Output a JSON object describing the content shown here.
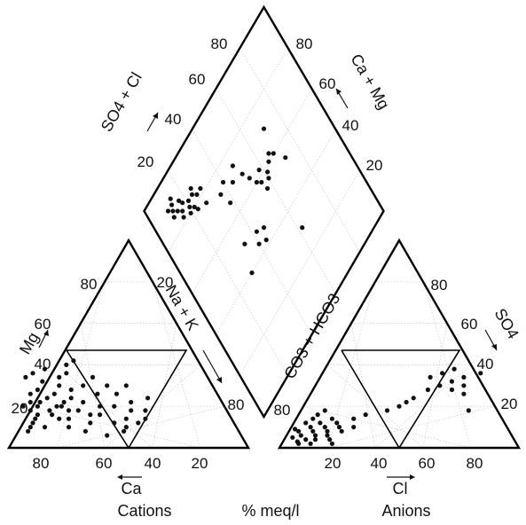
{
  "chart_data": {
    "type": "scatter",
    "subtype": "piper-trilinear",
    "grid": true,
    "cation_triangle": {
      "bottom_ticks": [
        "80",
        "60",
        "40",
        "20"
      ],
      "left_ticks": [
        "20",
        "40",
        "60",
        "80"
      ],
      "right_ticks": [
        "20",
        "40",
        "60",
        "80"
      ],
      "left_axis_label": "Mg",
      "right_axis_label": "Na + K",
      "bottom_axis_label": "Ca",
      "caption": "Cations",
      "points_ca_mg": [
        [
          78,
          20
        ],
        [
          76,
          22
        ],
        [
          74,
          18
        ],
        [
          80,
          16
        ],
        [
          72,
          24
        ],
        [
          70,
          20
        ],
        [
          68,
          26
        ],
        [
          74,
          28
        ],
        [
          66,
          22
        ],
        [
          64,
          30
        ],
        [
          82,
          14
        ],
        [
          84,
          12
        ],
        [
          70,
          32
        ],
        [
          62,
          34
        ],
        [
          60,
          28
        ],
        [
          58,
          36
        ],
        [
          66,
          38
        ],
        [
          72,
          36
        ],
        [
          76,
          34
        ],
        [
          56,
          40
        ],
        [
          52,
          42
        ],
        [
          54,
          30
        ],
        [
          58,
          22
        ],
        [
          62,
          18
        ],
        [
          50,
          26
        ],
        [
          48,
          34
        ],
        [
          86,
          10
        ],
        [
          88,
          8
        ],
        [
          80,
          10
        ],
        [
          68,
          14
        ],
        [
          60,
          12
        ],
        [
          54,
          16
        ],
        [
          46,
          20
        ],
        [
          42,
          26
        ],
        [
          38,
          22
        ],
        [
          36,
          30
        ],
        [
          34,
          18
        ],
        [
          30,
          24
        ],
        [
          44,
          14
        ],
        [
          40,
          12
        ],
        [
          70,
          10
        ],
        [
          64,
          8
        ],
        [
          56,
          6
        ],
        [
          48,
          8
        ],
        [
          78,
          26
        ],
        [
          80,
          22
        ],
        [
          72,
          14
        ],
        [
          66,
          18
        ],
        [
          52,
          20
        ],
        [
          44,
          30
        ],
        [
          40,
          18
        ],
        [
          36,
          14
        ],
        [
          50,
          12
        ],
        [
          46,
          10
        ],
        [
          58,
          16
        ],
        [
          62,
          24
        ],
        [
          68,
          20
        ],
        [
          74,
          16
        ],
        [
          82,
          18
        ],
        [
          84,
          20
        ]
      ]
    },
    "anion_triangle": {
      "bottom_ticks": [
        "20",
        "40",
        "60",
        "80"
      ],
      "left_ticks": [
        "80",
        "60",
        "40",
        "20"
      ],
      "right_ticks": [
        "80",
        "60",
        "40",
        "20"
      ],
      "left_axis_label": "CO3 + HCO3",
      "right_axis_label": "SO4",
      "bottom_axis_label": "Cl",
      "caption": "Anions",
      "points_cl_so4": [
        [
          4,
          8
        ],
        [
          6,
          6
        ],
        [
          8,
          10
        ],
        [
          10,
          8
        ],
        [
          12,
          6
        ],
        [
          5,
          12
        ],
        [
          7,
          14
        ],
        [
          9,
          4
        ],
        [
          11,
          12
        ],
        [
          14,
          10
        ],
        [
          16,
          8
        ],
        [
          6,
          3
        ],
        [
          3,
          5
        ],
        [
          13,
          4
        ],
        [
          15,
          14
        ],
        [
          18,
          12
        ],
        [
          20,
          10
        ],
        [
          8,
          16
        ],
        [
          10,
          18
        ],
        [
          12,
          2
        ],
        [
          22,
          8
        ],
        [
          24,
          14
        ],
        [
          26,
          10
        ],
        [
          28,
          16
        ],
        [
          36,
          18
        ],
        [
          42,
          22
        ],
        [
          48,
          28
        ],
        [
          52,
          30
        ],
        [
          56,
          32
        ],
        [
          60,
          34
        ],
        [
          50,
          36
        ],
        [
          54,
          38
        ],
        [
          58,
          28
        ],
        [
          62,
          30
        ],
        [
          46,
          34
        ],
        [
          40,
          20
        ],
        [
          44,
          24
        ],
        [
          64,
          26
        ],
        [
          70,
          18
        ],
        [
          66,
          36
        ],
        [
          17,
          6
        ],
        [
          19,
          4
        ],
        [
          21,
          2
        ],
        [
          7,
          2
        ],
        [
          2,
          9
        ]
      ]
    },
    "diamond": {
      "left_ticks": [
        "80",
        "60",
        "40",
        "20"
      ],
      "right_ticks": [
        "80",
        "60",
        "40",
        "20"
      ],
      "left_axis_label": "SO4 + Cl",
      "right_axis_label": "Ca + Mg",
      "points_so4cl_camg": [
        [
          10,
          90
        ],
        [
          12,
          88
        ],
        [
          14,
          86
        ],
        [
          16,
          84
        ],
        [
          18,
          86
        ],
        [
          20,
          82
        ],
        [
          22,
          80
        ],
        [
          14,
          92
        ],
        [
          17,
          88
        ],
        [
          11,
          86
        ],
        [
          24,
          84
        ],
        [
          26,
          82
        ],
        [
          19,
          80
        ],
        [
          21,
          84
        ],
        [
          13,
          90
        ],
        [
          15,
          82
        ],
        [
          23,
          78
        ],
        [
          28,
          76
        ],
        [
          25,
          86
        ],
        [
          29,
          82
        ],
        [
          36,
          72
        ],
        [
          40,
          74
        ],
        [
          44,
          70
        ],
        [
          48,
          74
        ],
        [
          52,
          64
        ],
        [
          54,
          60
        ],
        [
          56,
          58
        ],
        [
          58,
          62
        ],
        [
          60,
          56
        ],
        [
          57,
          54
        ],
        [
          61,
          58
        ],
        [
          64,
          60
        ],
        [
          66,
          62
        ],
        [
          40,
          44
        ],
        [
          44,
          42
        ],
        [
          46,
          46
        ],
        [
          42,
          48
        ],
        [
          68,
          60
        ],
        [
          70,
          70
        ],
        [
          62,
          30
        ],
        [
          30,
          40
        ],
        [
          34,
          50
        ],
        [
          38,
          66
        ],
        [
          50,
          68
        ],
        [
          72,
          54
        ]
      ]
    },
    "center_label": "% meq/l"
  }
}
